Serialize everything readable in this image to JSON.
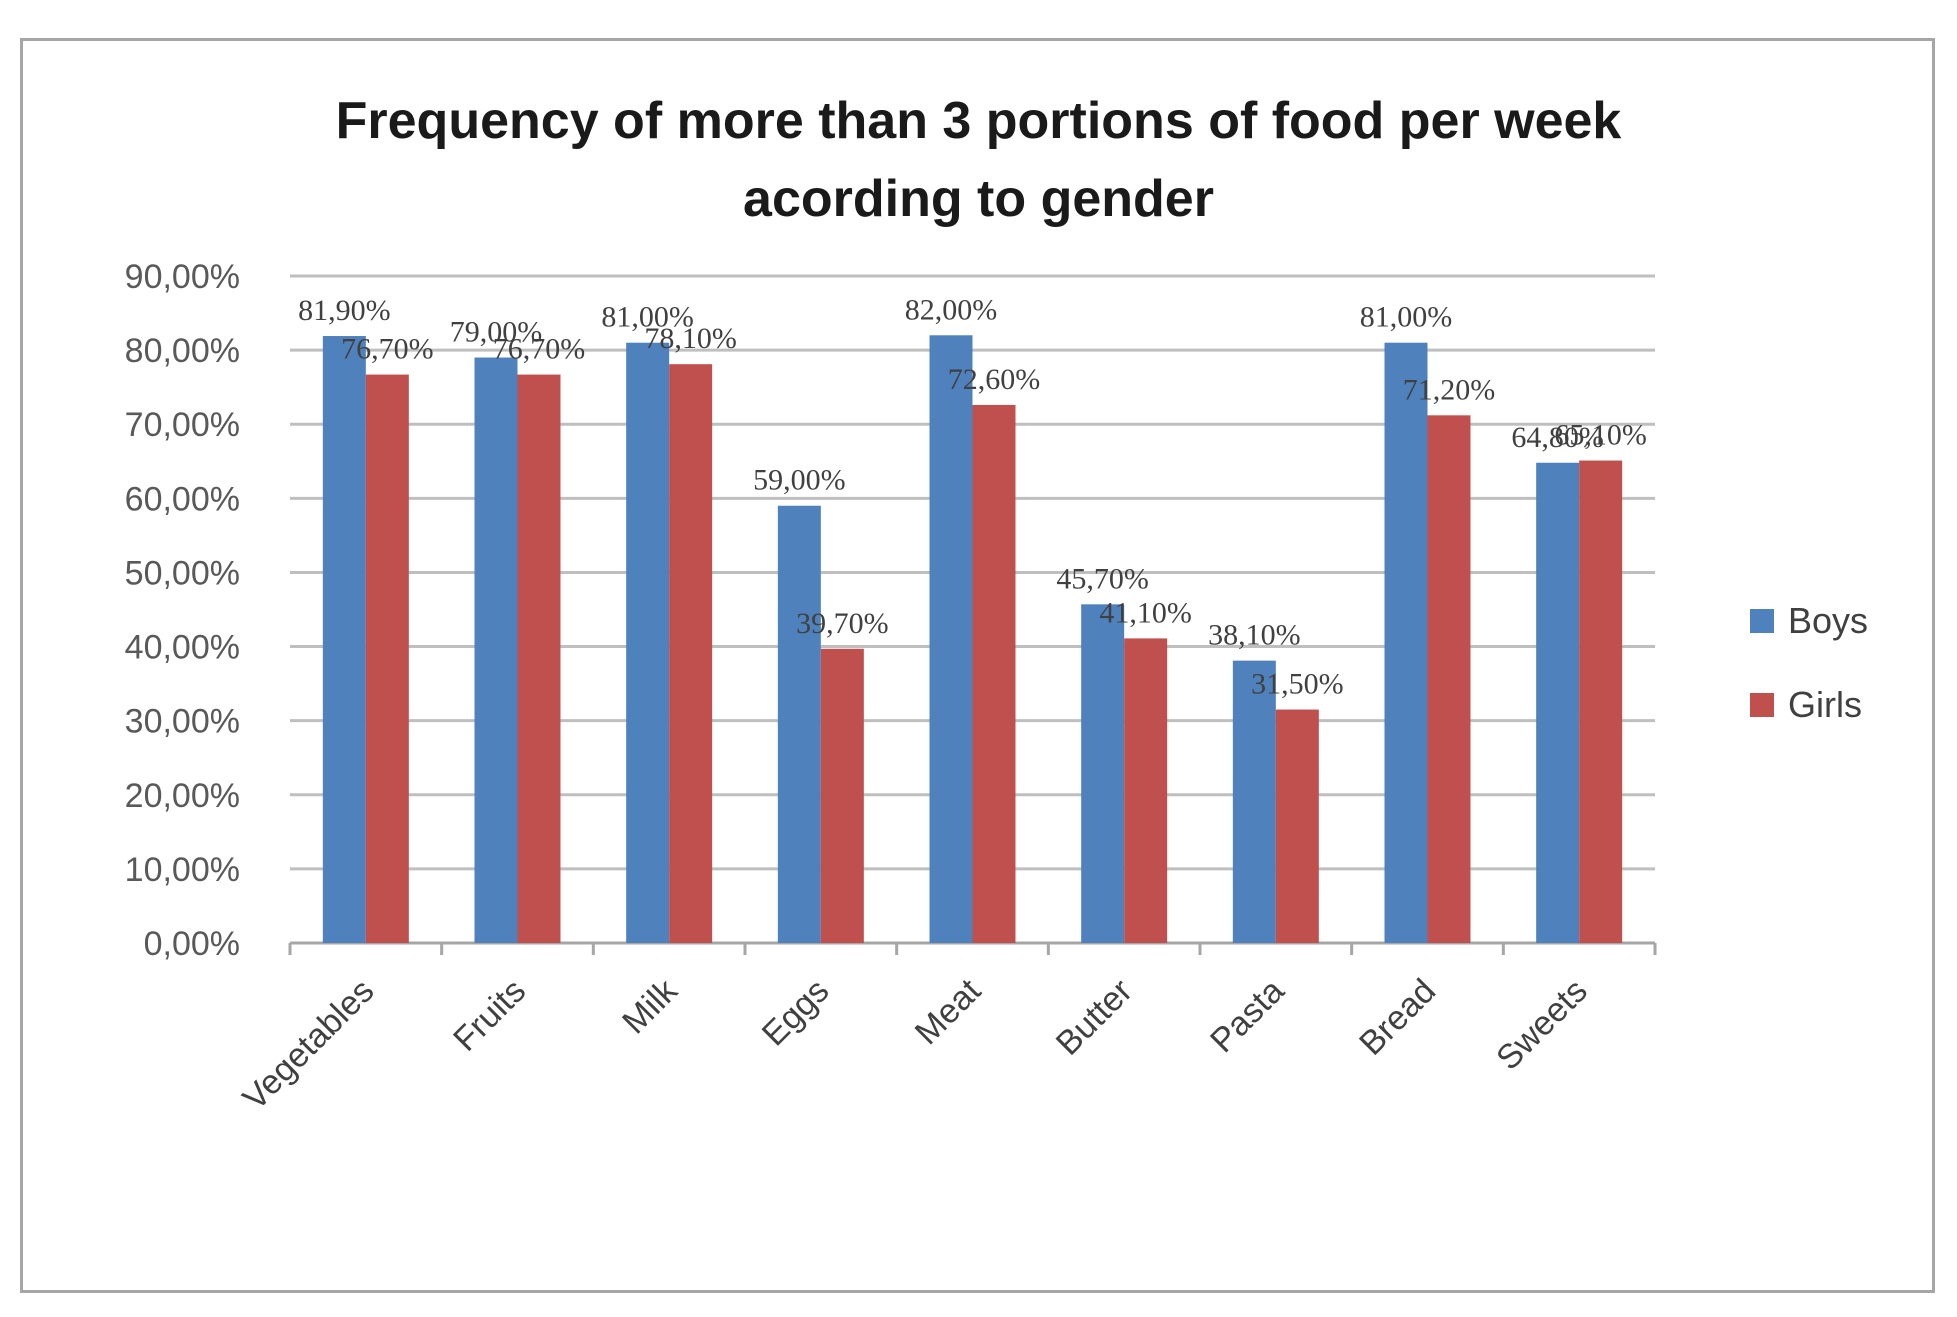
{
  "chart_data": {
    "type": "bar",
    "title": "Frequency of more than 3 portions of food per week acording to gender",
    "title_lines": [
      "Frequency of more than 3 portions of food per week",
      "acording to gender"
    ],
    "categories": [
      "Vegetables",
      "Fruits",
      "Milk",
      "Eggs",
      "Meat",
      "Butter",
      "Pasta",
      "Bread",
      "Sweets"
    ],
    "series": [
      {
        "name": "Boys",
        "color": "#4f81bd",
        "values": [
          81.9,
          79.0,
          81.0,
          59.0,
          82.0,
          45.7,
          38.1,
          81.0,
          64.8
        ],
        "labels": [
          "81,90%",
          "79,00%",
          "81,00%",
          "59,00%",
          "82,00%",
          "45,70%",
          "38,10%",
          "81,00%",
          "64,80%"
        ]
      },
      {
        "name": "Girls",
        "color": "#c0504d",
        "values": [
          76.7,
          76.7,
          78.1,
          39.7,
          72.6,
          41.1,
          31.5,
          71.2,
          65.1
        ],
        "labels": [
          "76,70%",
          "76,70%",
          "78,10%",
          "39,70%",
          "72,60%",
          "41,10%",
          "31,50%",
          "71,20%",
          "65,10%"
        ]
      }
    ],
    "xlabel": "",
    "ylabel": "",
    "ylim": [
      0,
      90
    ],
    "yticks": [
      "0,00%",
      "10,00%",
      "20,00%",
      "30,00%",
      "40,00%",
      "50,00%",
      "60,00%",
      "70,00%",
      "80,00%",
      "90,00%"
    ],
    "grid": true,
    "legend_position": "right"
  }
}
